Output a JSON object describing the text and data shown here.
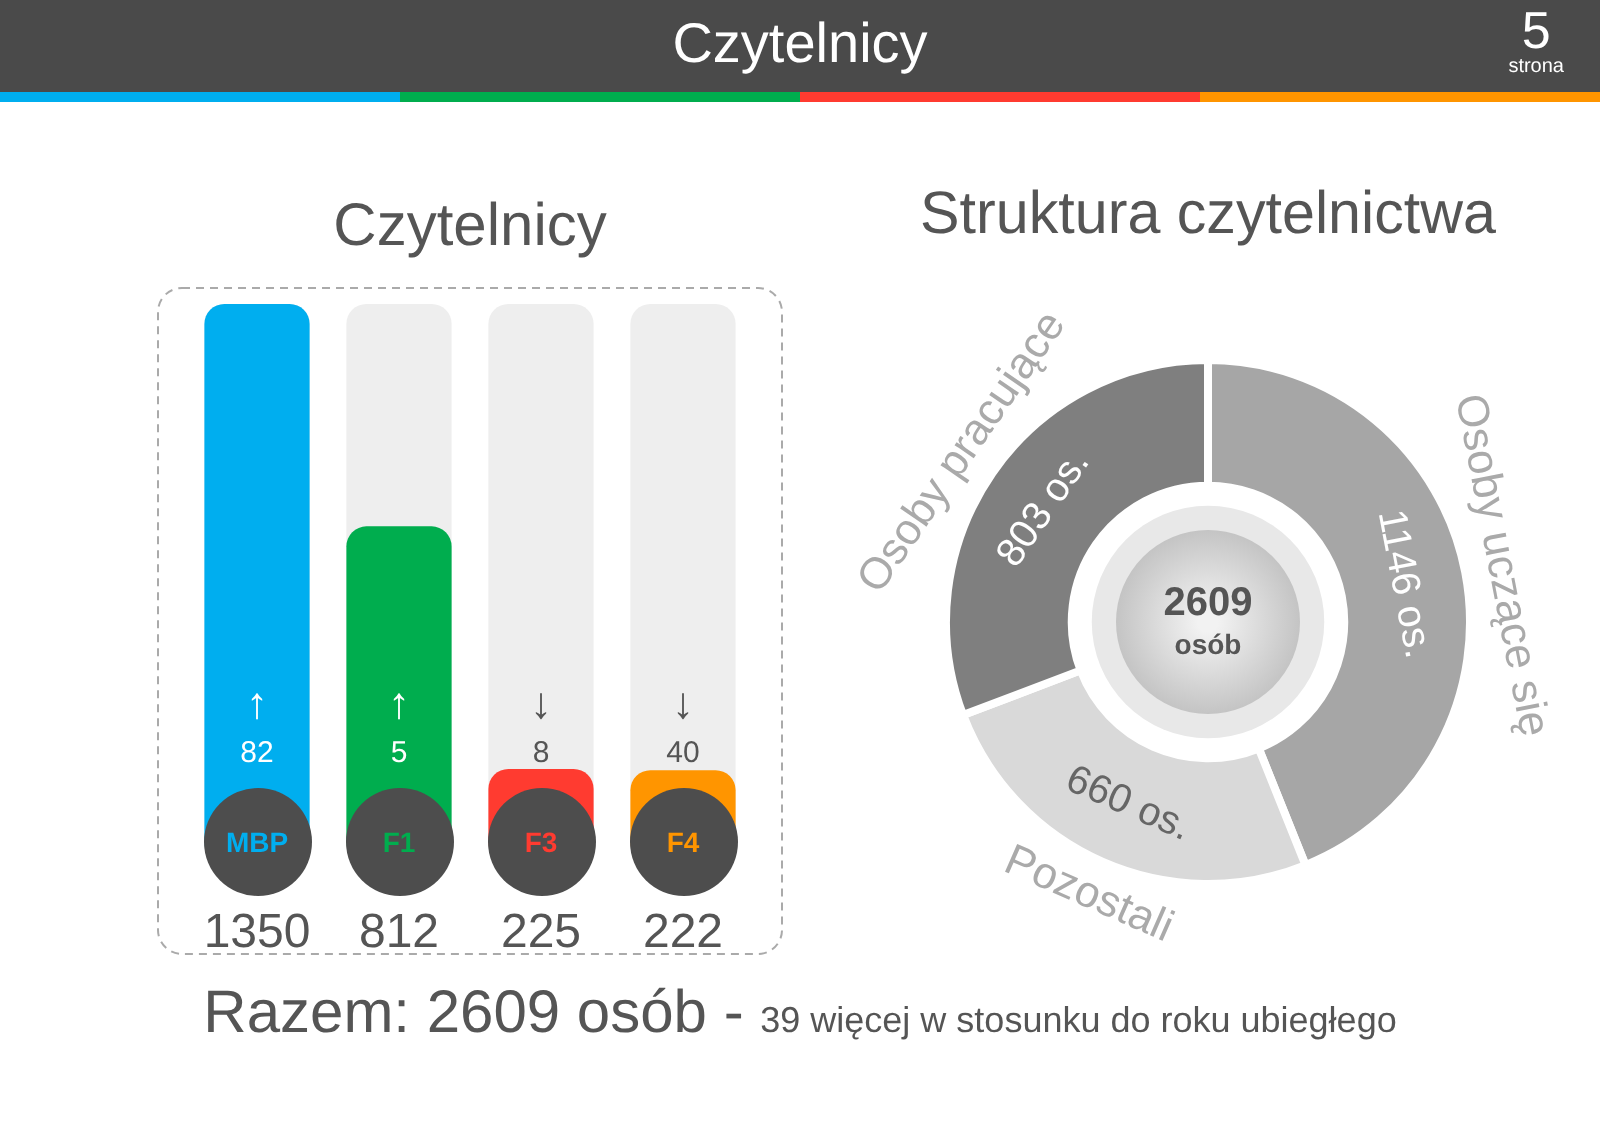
{
  "chart_data": [
    {
      "type": "bar",
      "title": "Czytelnicy",
      "categories": [
        "MBP",
        "F1",
        "F3",
        "F4"
      ],
      "values": [
        1350,
        812,
        225,
        222
      ],
      "colors": [
        "#00aeef",
        "#00ad4e",
        "#ff3b30",
        "#ff9500"
      ],
      "data_labels": true,
      "annotations": [
        "Czytelnicy",
        "5",
        "strona",
        "↑ 82",
        "↑ 5",
        "↓ 8",
        "↓ 40",
        "Razem: 2609 osób - 39 więcej w stosunku do roku ubiegłego"
      ]
    },
    {
      "type": "donut",
      "title": "Struktura czytelnictwa",
      "categories": [
        "Osoby uczące się",
        "Pozostali",
        "Osoby pracujące"
      ],
      "values": [
        1146,
        660,
        803
      ],
      "colors": [
        "#a6a6a6",
        "#d9d9d9",
        "#7f7f7f"
      ],
      "value_labels": [
        "1146 os.",
        "660 os.",
        "803 os."
      ],
      "annotations": [
        "2609 osób"
      ]
    }
  ]
}
